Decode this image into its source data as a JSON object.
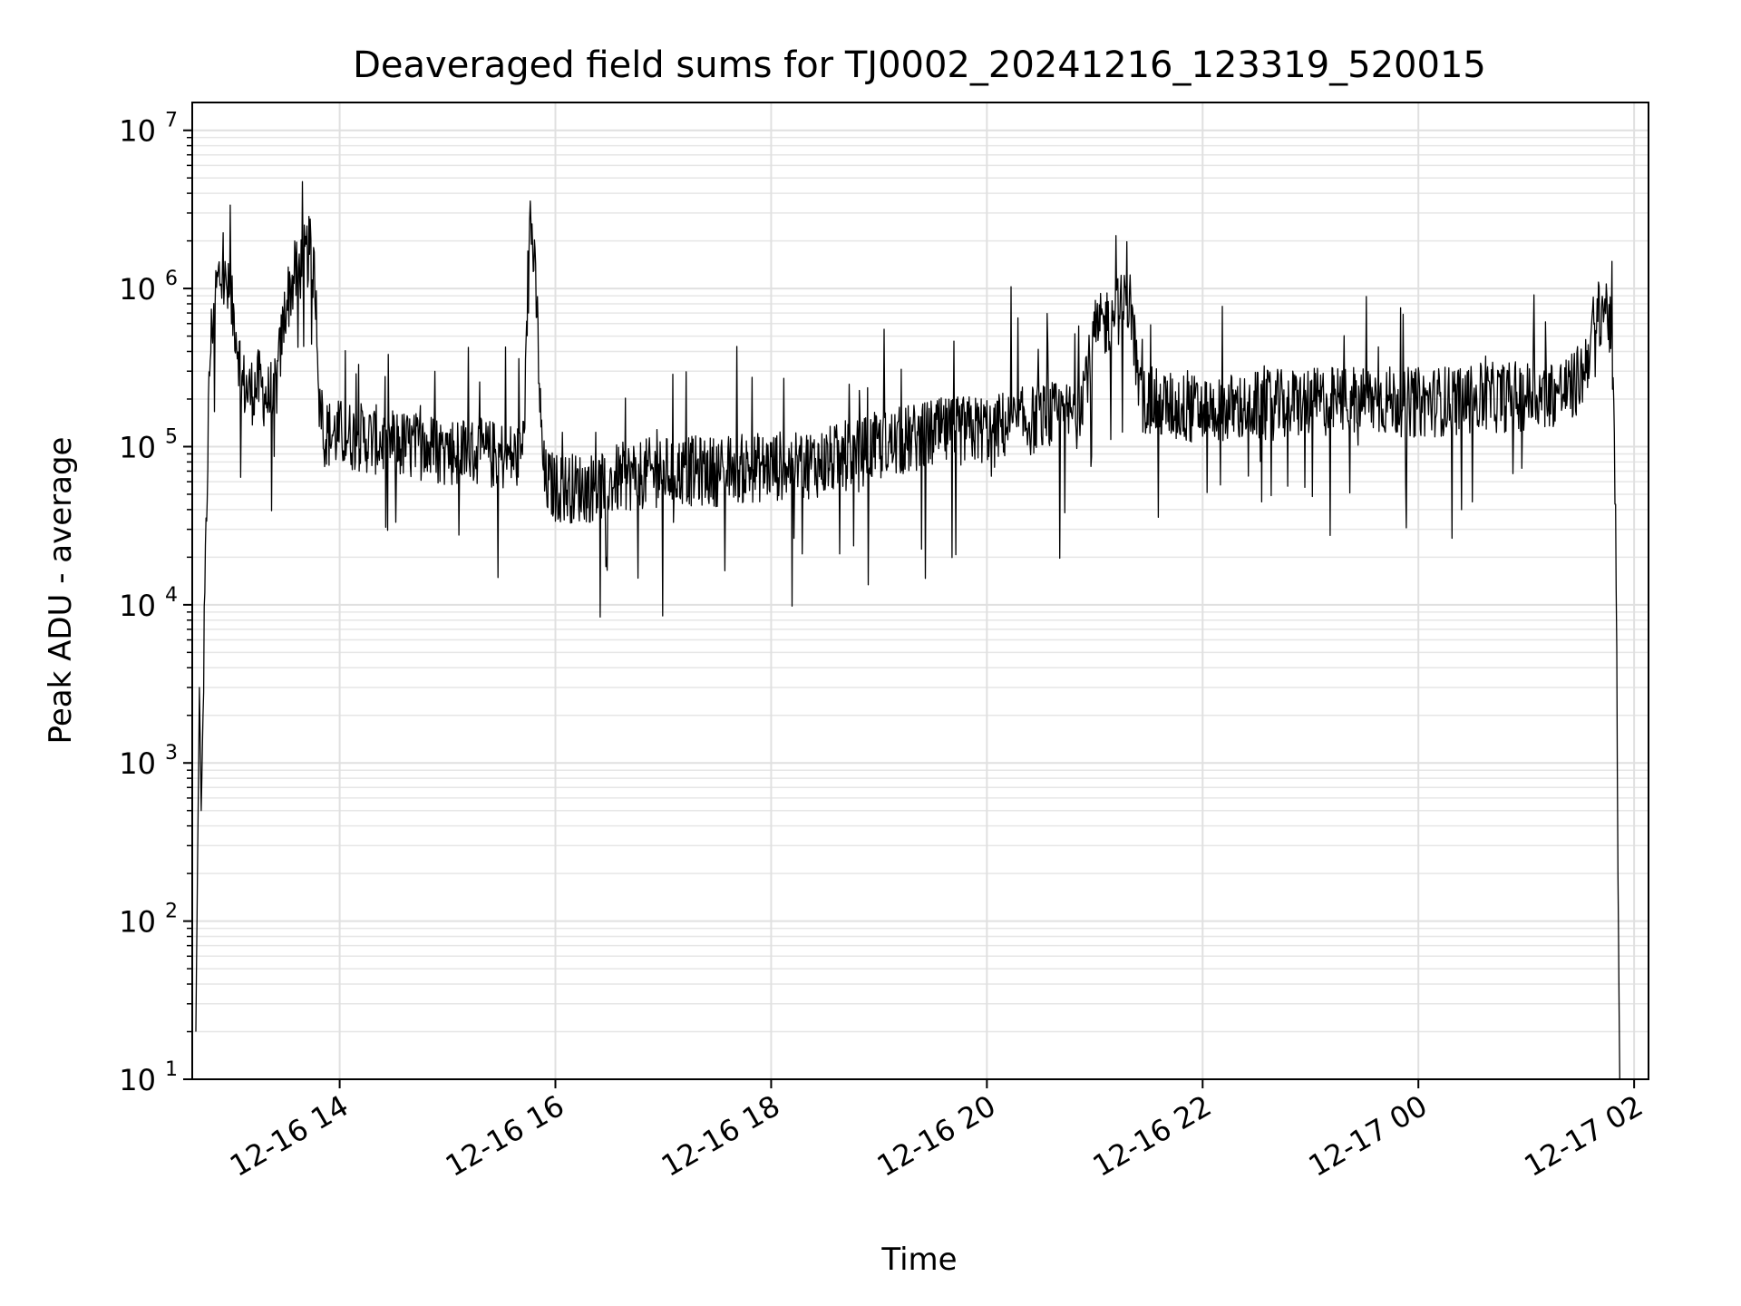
{
  "chart_data": {
    "type": "line",
    "title": "Deaveraged field sums for TJ0002_20241216_123319_520015",
    "xlabel": "Time",
    "ylabel": "Peak ADU - average",
    "yscale": "log",
    "ylim": [
      10,
      15000000
    ],
    "xlim": [
      "2024-12-16 12:38",
      "2024-12-17 02:08"
    ],
    "grid": true,
    "grid_minor": true,
    "x_ticks": [
      {
        "value": "2024-12-16 14:00",
        "label": "12-16 14"
      },
      {
        "value": "2024-12-16 16:00",
        "label": "12-16 16"
      },
      {
        "value": "2024-12-16 18:00",
        "label": "12-16 18"
      },
      {
        "value": "2024-12-16 20:00",
        "label": "12-16 20"
      },
      {
        "value": "2024-12-16 22:00",
        "label": "12-16 22"
      },
      {
        "value": "2024-12-17 00:00",
        "label": "12-17 00"
      },
      {
        "value": "2024-12-17 02:00",
        "label": "12-17 02"
      }
    ],
    "y_ticks": [
      {
        "value": 10,
        "base": "10",
        "exp": "1"
      },
      {
        "value": 100,
        "base": "10",
        "exp": "2"
      },
      {
        "value": 1000,
        "base": "10",
        "exp": "3"
      },
      {
        "value": 10000,
        "base": "10",
        "exp": "4"
      },
      {
        "value": 100000,
        "base": "10",
        "exp": "5"
      },
      {
        "value": 1000000,
        "base": "10",
        "exp": "6"
      },
      {
        "value": 10000000,
        "base": "10",
        "exp": "7"
      }
    ],
    "series_color": "#000000",
    "series": [
      {
        "x": [
          "2024-12-16 12:40",
          "2024-12-16 12:42",
          "2024-12-16 12:43",
          "2024-12-16 12:44",
          "2024-12-16 12:45",
          "2024-12-16 12:46",
          "2024-12-16 12:47",
          "2024-12-16 12:48",
          "2024-12-16 12:50",
          "2024-12-16 12:53",
          "2024-12-16 12:57",
          "2024-12-16 13:02",
          "2024-12-16 13:06",
          "2024-12-16 13:10",
          "2024-12-16 13:15",
          "2024-12-16 13:20",
          "2024-12-16 13:25",
          "2024-12-16 13:30",
          "2024-12-16 13:35",
          "2024-12-16 13:40",
          "2024-12-16 13:44",
          "2024-12-16 13:47",
          "2024-12-16 13:49",
          "2024-12-16 13:52",
          "2024-12-16 14:00",
          "2024-12-16 14:20",
          "2024-12-16 14:40",
          "2024-12-16 15:00",
          "2024-12-16 15:20",
          "2024-12-16 15:40",
          "2024-12-16 15:42",
          "2024-12-16 15:44",
          "2024-12-16 15:46",
          "2024-12-16 15:48",
          "2024-12-16 15:50",
          "2024-12-16 15:52",
          "2024-12-16 15:54",
          "2024-12-16 16:00",
          "2024-12-16 16:20",
          "2024-12-16 16:40",
          "2024-12-16 17:00",
          "2024-12-16 17:30",
          "2024-12-16 18:00",
          "2024-12-16 18:30",
          "2024-12-16 19:00",
          "2024-12-16 19:30",
          "2024-12-16 20:00",
          "2024-12-16 20:30",
          "2024-12-16 20:50",
          "2024-12-16 21:00",
          "2024-12-16 21:10",
          "2024-12-16 21:20",
          "2024-12-16 21:25",
          "2024-12-16 21:40",
          "2024-12-16 22:00",
          "2024-12-16 22:30",
          "2024-12-16 23:00",
          "2024-12-16 23:30",
          "2024-12-17 00:00",
          "2024-12-17 00:30",
          "2024-12-17 01:00",
          "2024-12-17 01:15",
          "2024-12-17 01:25",
          "2024-12-17 01:32",
          "2024-12-17 01:38",
          "2024-12-17 01:43",
          "2024-12-17 01:46",
          "2024-12-17 01:48",
          "2024-12-17 01:50",
          "2024-12-17 01:51",
          "2024-12-17 01:52"
        ],
        "y": [
          20,
          3000,
          500,
          2000,
          10000,
          40000,
          150000,
          400000,
          800000,
          1200000,
          1000000,
          600000,
          250000,
          220000,
          250000,
          200000,
          250000,
          800000,
          1200000,
          1500000,
          1800000,
          900000,
          150000,
          120000,
          120000,
          110000,
          100000,
          95000,
          90000,
          85000,
          100000,
          400000,
          3000000,
          1500000,
          600000,
          120000,
          60000,
          55000,
          55000,
          65000,
          70000,
          70000,
          75000,
          80000,
          100000,
          120000,
          130000,
          150000,
          160000,
          500000,
          700000,
          800000,
          200000,
          180000,
          170000,
          180000,
          190000,
          200000,
          190000,
          200000,
          210000,
          220000,
          230000,
          300000,
          600000,
          800000,
          700000,
          300000,
          20000,
          200,
          10
        ]
      }
    ]
  }
}
